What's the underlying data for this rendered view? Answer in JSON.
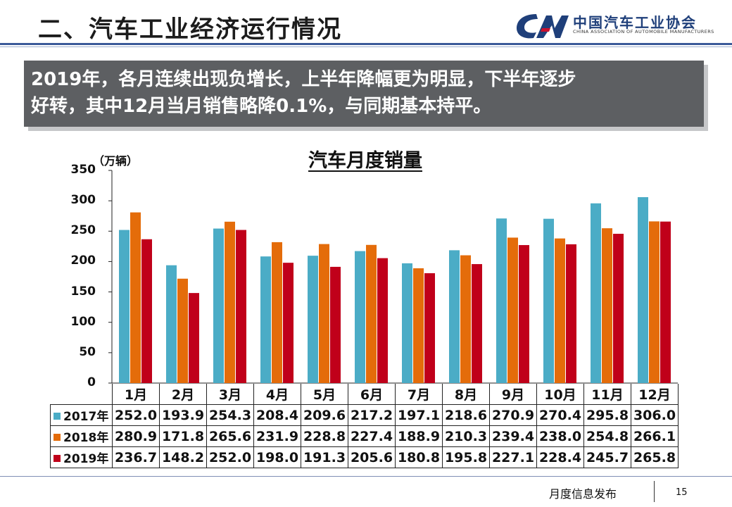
{
  "header": {
    "title": "二、汽车工业经济运行情况",
    "logo_cn": "中国汽车工业协会",
    "logo_en": "CHINA ASSOCIATION OF AUTOMOBILE MANUFACTURERS"
  },
  "banner": {
    "line1": "2019年，各月连续出现负增长，上半年降幅更为明显，下半年逐步",
    "line2": "好转，其中12月当月销售略降0.1%，与同期基本持平。"
  },
  "footer": {
    "label": "月度信息发布",
    "page": "15"
  },
  "colors": {
    "s2017": "#4bacc6",
    "s2018": "#e46c0a",
    "s2019": "#c0001a"
  },
  "chart_data": {
    "type": "bar",
    "title": "汽车月度销量",
    "ylabel": "（万辆）",
    "ylim": [
      0,
      350
    ],
    "yticks": [
      "0",
      "50",
      "100",
      "150",
      "200",
      "250",
      "300",
      "350"
    ],
    "categories": [
      "1月",
      "2月",
      "3月",
      "4月",
      "5月",
      "6月",
      "7月",
      "8月",
      "9月",
      "10月",
      "11月",
      "12月"
    ],
    "series": [
      {
        "name": "2017年",
        "values": [
          252.0,
          193.9,
          254.3,
          208.4,
          209.6,
          217.2,
          197.1,
          218.6,
          270.9,
          270.4,
          295.8,
          306.0
        ],
        "labels": [
          "252.0",
          "193.9",
          "254.3",
          "208.4",
          "209.6",
          "217.2",
          "197.1",
          "218.6",
          "270.9",
          "270.4",
          "295.8",
          "306.0"
        ]
      },
      {
        "name": "2018年",
        "values": [
          280.9,
          171.8,
          265.6,
          231.9,
          228.8,
          227.4,
          188.9,
          210.3,
          239.4,
          238.0,
          254.8,
          266.1
        ],
        "labels": [
          "280.9",
          "171.8",
          "265.6",
          "231.9",
          "228.8",
          "227.4",
          "188.9",
          "210.3",
          "239.4",
          "238.0",
          "254.8",
          "266.1"
        ]
      },
      {
        "name": "2019年",
        "values": [
          236.7,
          148.2,
          252.0,
          198.0,
          191.3,
          205.6,
          180.8,
          195.8,
          227.1,
          228.4,
          245.7,
          265.8
        ],
        "labels": [
          "236.7",
          "148.2",
          "252.0",
          "198.0",
          "191.3",
          "205.6",
          "180.8",
          "195.8",
          "227.1",
          "228.4",
          "245.7",
          "265.8"
        ]
      }
    ]
  }
}
